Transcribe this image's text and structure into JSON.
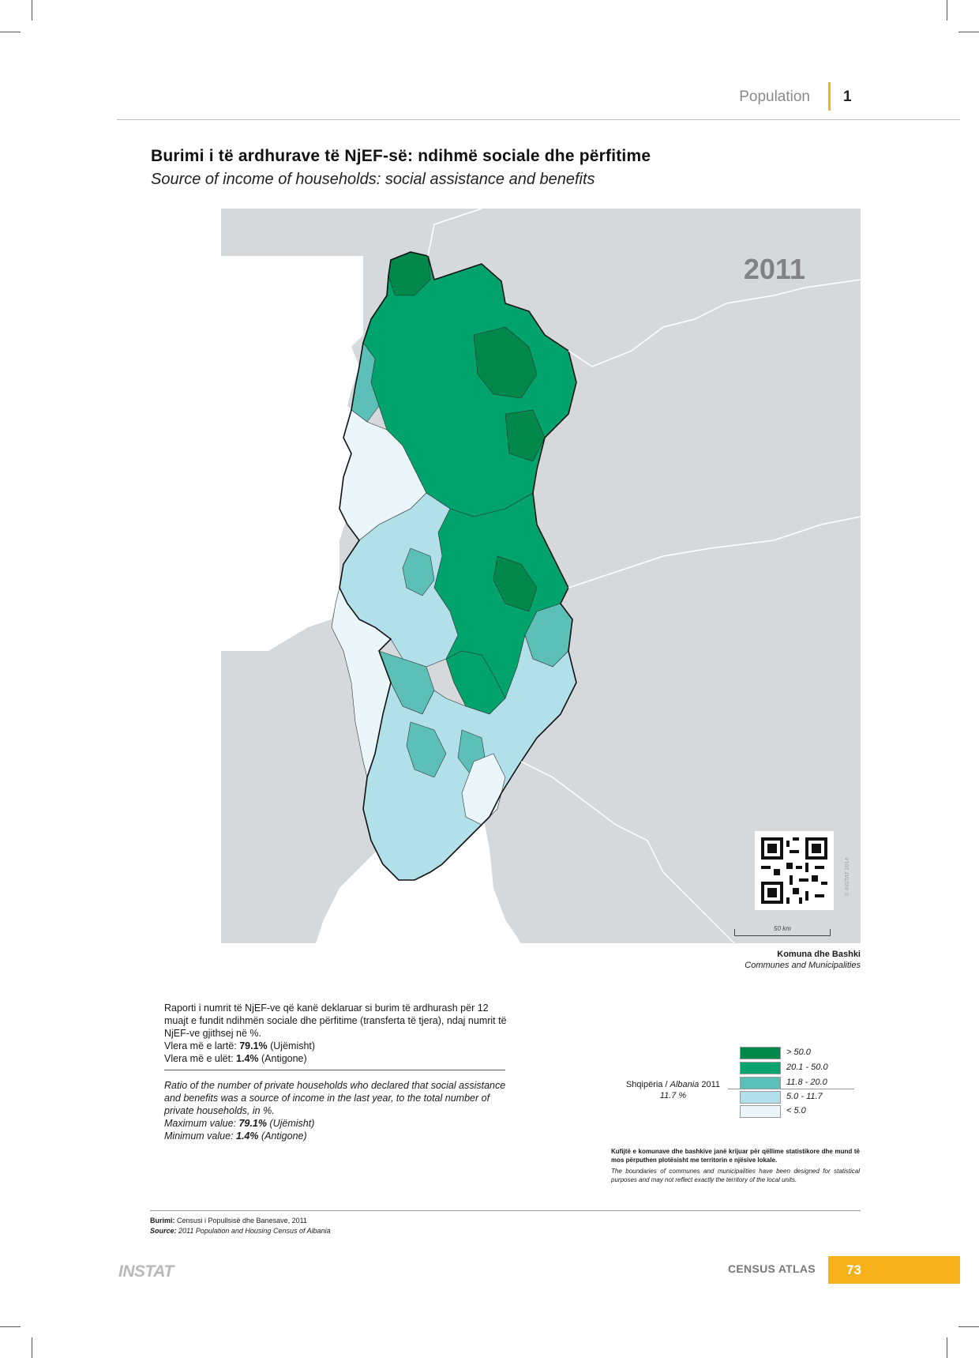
{
  "header": {
    "section": "Population",
    "chapter_number": "1"
  },
  "title": {
    "albanian": "Burimi i të ardhurave të NjEF-së: ndihmë sociale dhe përfitime",
    "english": "Source of income of households: social assistance and benefits"
  },
  "map": {
    "year": "2011",
    "scale_label": "50 km",
    "copyright": "© INSTAT 2014",
    "units_albanian": "Komuna dhe Bashki",
    "units_english": "Communes and Municipalities",
    "colors": {
      "background": "#d6d9dc",
      "neighbours": "#d6d9dc",
      "border": "#ffffff"
    }
  },
  "description": {
    "albanian_text": "Raporti i numrit të NjEF-ve që kanë deklaruar si burim të ardhurash për 12 muajt e fundit ndihmën sociale dhe përfitime (transferta të tjera), ndaj numrit të NjEF-ve gjithsej në %.",
    "albanian_max_prefix": "Vlera më e lartë: ",
    "albanian_max_value": "79.1%",
    "albanian_max_place": " (Ujëmisht)",
    "albanian_min_prefix": "Vlera më e ulët: ",
    "albanian_min_value": "1.4%",
    "albanian_min_place": " (Antigone)",
    "english_text": "Ratio of the number of private households who declared that social assistance and benefits was a source of income in the last year, to the total number of private households, in %.",
    "english_max_prefix": "Maximum value: ",
    "english_max_value": "79.1%",
    "english_max_place": " (Ujëmisht)",
    "english_min_prefix": "Minimum value: ",
    "english_min_value": "1.4%",
    "english_min_place": " (Antigone)"
  },
  "legend": {
    "national_label_prefix": "Shqipëria / ",
    "national_label_italic": "Albania",
    "national_label_year": " 2011",
    "national_value": "11.7 %",
    "classes": [
      {
        "label": "> 50.0",
        "color": "#00874a"
      },
      {
        "label": "20.1 - 50.0",
        "color": "#00a36c"
      },
      {
        "label": "11.8 - 20.0",
        "color": "#5cc0b8"
      },
      {
        "label": "5.0 - 11.7",
        "color": "#b2e0ea"
      },
      {
        "label": "< 5.0",
        "color": "#eaf6fa"
      }
    ]
  },
  "note": {
    "albanian": "Kufijtë e komunave dhe bashkive janë krijuar për qëllime statistikore dhe mund të mos përputhen plotësisht me territorin e njësive lokale.",
    "english": "The boundaries of communes and municipalities have been designed for statistical purposes and may not reflect exactly the territory of the local units."
  },
  "footer": {
    "source_al_label": "Burimi:",
    "source_al_text": " Censusi i Popullsisë dhe Banesave, 2011",
    "source_en_label": "Source:",
    "source_en_text": " 2011 Population and Housing Census of Albania",
    "logo": "INSTAT",
    "atlas": "CENSUS ATLAS",
    "page": "73"
  }
}
